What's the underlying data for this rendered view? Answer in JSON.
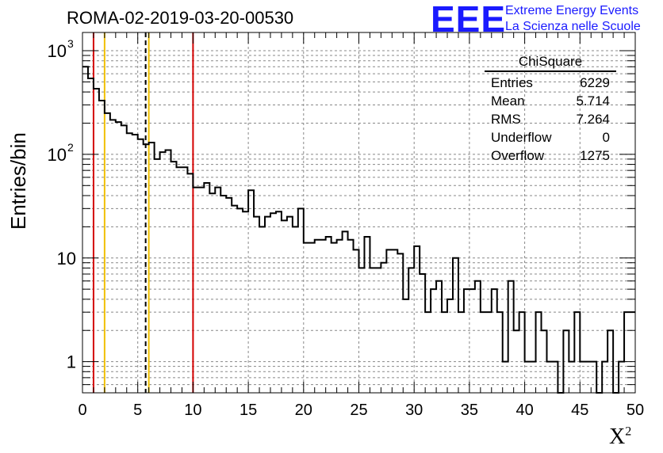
{
  "header": {
    "title": "ROMA-02-2019-03-20-00530",
    "logo_text": "EEE",
    "logo_line1": "Extreme Energy Events",
    "logo_line2": "La Scienza nelle Scuole"
  },
  "stats_box": {
    "title": "ChiSquare",
    "rows": [
      {
        "label": "Entries",
        "value": "6229"
      },
      {
        "label": "Mean",
        "value": "5.714"
      },
      {
        "label": "RMS",
        "value": "7.264"
      },
      {
        "label": "Underflow",
        "value": "0"
      },
      {
        "label": "Overflow",
        "value": "1275"
      }
    ]
  },
  "chart_data": {
    "type": "histogram",
    "title": "ROMA-02-2019-03-20-00530",
    "xlabel": "X",
    "xlabel_sup": "2",
    "ylabel": "Entries/bin",
    "xlim": [
      0,
      50
    ],
    "ylim": [
      0.5,
      1500
    ],
    "yscale": "log",
    "grid": true,
    "bin_width": 0.5,
    "x_ticks": [
      "0",
      "5",
      "10",
      "15",
      "20",
      "25",
      "30",
      "35",
      "40",
      "45",
      "50"
    ],
    "y_ticks": [
      {
        "value": 1,
        "label": "1"
      },
      {
        "value": 10,
        "label": "10"
      },
      {
        "value": 100,
        "label": "10",
        "exp": "2"
      },
      {
        "value": 1000,
        "label": "10",
        "exp": "3"
      }
    ],
    "counts": [
      700,
      540,
      430,
      330,
      250,
      215,
      205,
      190,
      160,
      155,
      140,
      125,
      130,
      90,
      105,
      110,
      85,
      75,
      75,
      65,
      48,
      48,
      53,
      42,
      48,
      40,
      38,
      32,
      30,
      28,
      45,
      25,
      20,
      25,
      27,
      28,
      23,
      25,
      20,
      30,
      14,
      14,
      15,
      15,
      16,
      14,
      15,
      18,
      15,
      12,
      8,
      16,
      8,
      8,
      9,
      12,
      12,
      11,
      4,
      8,
      13,
      7,
      3,
      5,
      6,
      3,
      4,
      10,
      3,
      5,
      5,
      6,
      3,
      3,
      5,
      3,
      1,
      6,
      2,
      3,
      1,
      1,
      3,
      2,
      1,
      1,
      0.4,
      2,
      1,
      3,
      1,
      1,
      1,
      0.4,
      1,
      2,
      0.4,
      1,
      3,
      3
    ],
    "lines": [
      {
        "x": 1,
        "color": "#d40000",
        "style": "solid"
      },
      {
        "x": 2,
        "color": "#f0c000",
        "style": "solid"
      },
      {
        "x": 5.714,
        "color": "#000000",
        "style": "dashed"
      },
      {
        "x": 6,
        "color": "#f0c000",
        "style": "solid"
      },
      {
        "x": 10,
        "color": "#d40000",
        "style": "solid"
      }
    ]
  }
}
